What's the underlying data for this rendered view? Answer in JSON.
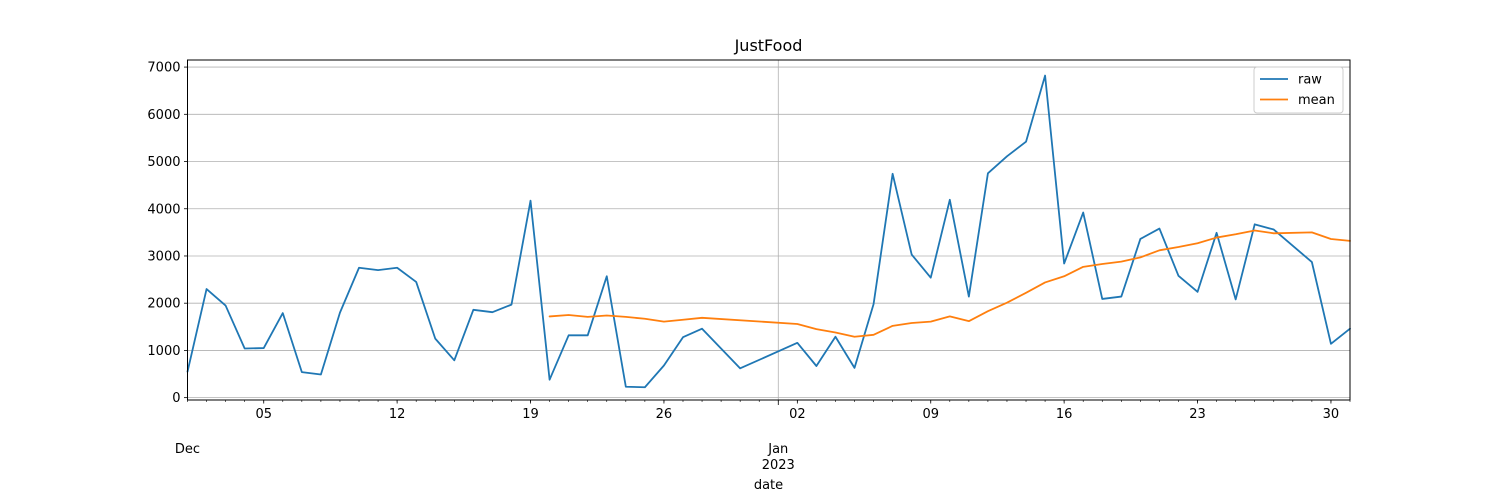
{
  "chart_data": {
    "type": "line",
    "title": "JustFood",
    "xlabel": "date",
    "ylabel": "",
    "ylim": [
      -50,
      7150
    ],
    "xlim": [
      "2022-12-01",
      "2023-01-31"
    ],
    "grid": true,
    "legend_position": "top-right",
    "x_ticks": [
      {
        "date": "2022-12-05",
        "label": "05"
      },
      {
        "date": "2022-12-12",
        "label": "12"
      },
      {
        "date": "2022-12-19",
        "label": "19"
      },
      {
        "date": "2022-12-26",
        "label": "26"
      },
      {
        "date": "2023-01-02",
        "label": "02"
      },
      {
        "date": "2023-01-09",
        "label": "09"
      },
      {
        "date": "2023-01-16",
        "label": "16"
      },
      {
        "date": "2023-01-23",
        "label": "23"
      },
      {
        "date": "2023-01-30",
        "label": "30"
      }
    ],
    "month_labels": [
      {
        "date": "2022-12-01",
        "label": "Dec"
      },
      {
        "date": "2023-01-01",
        "label": "Jan",
        "year": "2023"
      }
    ],
    "y_ticks": [
      0,
      1000,
      2000,
      3000,
      4000,
      5000,
      6000,
      7000
    ],
    "series": [
      {
        "name": "raw",
        "color": "#1f77b4",
        "points": [
          [
            "2022-12-01",
            550
          ],
          [
            "2022-12-02",
            2300
          ],
          [
            "2022-12-03",
            1950
          ],
          [
            "2022-12-04",
            1040
          ],
          [
            "2022-12-05",
            1050
          ],
          [
            "2022-12-06",
            1790
          ],
          [
            "2022-12-07",
            540
          ],
          [
            "2022-12-08",
            490
          ],
          [
            "2022-12-09",
            1800
          ],
          [
            "2022-12-10",
            2750
          ],
          [
            "2022-12-11",
            2700
          ],
          [
            "2022-12-12",
            2750
          ],
          [
            "2022-12-13",
            2450
          ],
          [
            "2022-12-14",
            1250
          ],
          [
            "2022-12-15",
            790
          ],
          [
            "2022-12-16",
            1860
          ],
          [
            "2022-12-17",
            1810
          ],
          [
            "2022-12-18",
            1970
          ],
          [
            "2022-12-19",
            4170
          ],
          [
            "2022-12-20",
            380
          ],
          [
            "2022-12-21",
            1320
          ],
          [
            "2022-12-22",
            1320
          ],
          [
            "2022-12-23",
            2570
          ],
          [
            "2022-12-24",
            230
          ],
          [
            "2022-12-25",
            220
          ],
          [
            "2022-12-26",
            680
          ],
          [
            "2022-12-27",
            1280
          ],
          [
            "2022-12-28",
            1460
          ],
          [
            "2022-12-30",
            620
          ],
          [
            "2023-01-02",
            1160
          ],
          [
            "2023-01-03",
            670
          ],
          [
            "2023-01-04",
            1290
          ],
          [
            "2023-01-05",
            630
          ],
          [
            "2023-01-06",
            1980
          ],
          [
            "2023-01-07",
            4740
          ],
          [
            "2023-01-08",
            3030
          ],
          [
            "2023-01-09",
            2540
          ],
          [
            "2023-01-10",
            4190
          ],
          [
            "2023-01-11",
            2140
          ],
          [
            "2023-01-12",
            4750
          ],
          [
            "2023-01-13",
            5110
          ],
          [
            "2023-01-14",
            5420
          ],
          [
            "2023-01-15",
            6820
          ],
          [
            "2023-01-16",
            2840
          ],
          [
            "2023-01-17",
            3920
          ],
          [
            "2023-01-18",
            2090
          ],
          [
            "2023-01-19",
            2140
          ],
          [
            "2023-01-20",
            3360
          ],
          [
            "2023-01-21",
            3580
          ],
          [
            "2023-01-22",
            2580
          ],
          [
            "2023-01-23",
            2240
          ],
          [
            "2023-01-24",
            3490
          ],
          [
            "2023-01-25",
            2080
          ],
          [
            "2023-01-26",
            3670
          ],
          [
            "2023-01-27",
            3560
          ],
          [
            "2023-01-29",
            2870
          ],
          [
            "2023-01-30",
            1140
          ],
          [
            "2023-01-31",
            1460
          ]
        ]
      },
      {
        "name": "mean",
        "color": "#ff7f0e",
        "points": [
          [
            "2022-12-20",
            1720
          ],
          [
            "2022-12-21",
            1750
          ],
          [
            "2022-12-22",
            1710
          ],
          [
            "2022-12-23",
            1740
          ],
          [
            "2022-12-24",
            1710
          ],
          [
            "2022-12-25",
            1670
          ],
          [
            "2022-12-26",
            1610
          ],
          [
            "2022-12-27",
            1650
          ],
          [
            "2022-12-28",
            1690
          ],
          [
            "2023-01-02",
            1560
          ],
          [
            "2023-01-03",
            1450
          ],
          [
            "2023-01-04",
            1380
          ],
          [
            "2023-01-05",
            1290
          ],
          [
            "2023-01-06",
            1330
          ],
          [
            "2023-01-07",
            1520
          ],
          [
            "2023-01-08",
            1580
          ],
          [
            "2023-01-09",
            1610
          ],
          [
            "2023-01-10",
            1720
          ],
          [
            "2023-01-11",
            1620
          ],
          [
            "2023-01-12",
            1830
          ],
          [
            "2023-01-13",
            2010
          ],
          [
            "2023-01-14",
            2220
          ],
          [
            "2023-01-15",
            2440
          ],
          [
            "2023-01-16",
            2570
          ],
          [
            "2023-01-17",
            2770
          ],
          [
            "2023-01-18",
            2830
          ],
          [
            "2023-01-19",
            2880
          ],
          [
            "2023-01-20",
            2970
          ],
          [
            "2023-01-21",
            3120
          ],
          [
            "2023-01-22",
            3190
          ],
          [
            "2023-01-23",
            3270
          ],
          [
            "2023-01-24",
            3390
          ],
          [
            "2023-01-25",
            3460
          ],
          [
            "2023-01-26",
            3540
          ],
          [
            "2023-01-27",
            3480
          ],
          [
            "2023-01-29",
            3500
          ],
          [
            "2023-01-30",
            3360
          ],
          [
            "2023-01-31",
            3320
          ]
        ]
      }
    ]
  }
}
